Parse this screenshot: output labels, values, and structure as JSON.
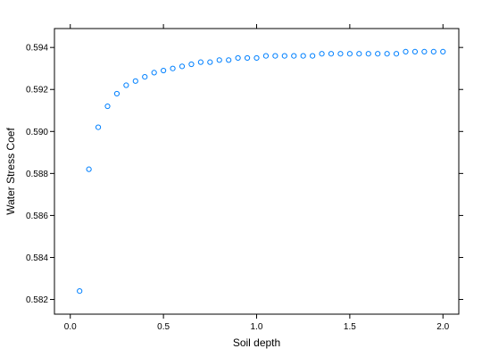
{
  "chart_data": {
    "type": "scatter",
    "xlabel": "Soil depth",
    "ylabel": "Water Stress Coef",
    "xlim": [
      -0.085,
      2.085
    ],
    "ylim": [
      0.5813,
      0.5949
    ],
    "x_ticks": [
      0.0,
      0.5,
      1.0,
      1.5,
      2.0
    ],
    "x_tick_labels": [
      "0.0",
      "0.5",
      "1.0",
      "1.5",
      "2.0"
    ],
    "y_ticks": [
      0.582,
      0.584,
      0.586,
      0.588,
      0.59,
      0.592,
      0.594
    ],
    "y_tick_labels": [
      "0.582",
      "0.584",
      "0.586",
      "0.588",
      "0.590",
      "0.592",
      "0.594"
    ],
    "grid": false,
    "marker": "open-circle",
    "point_color": "#0080ff",
    "series": [
      {
        "x": [
          0.05,
          0.1,
          0.15,
          0.2,
          0.25,
          0.3,
          0.35,
          0.4,
          0.45,
          0.5,
          0.55,
          0.6,
          0.65,
          0.7,
          0.75,
          0.8,
          0.85,
          0.9,
          0.95,
          1.0,
          1.05,
          1.1,
          1.15,
          1.2,
          1.25,
          1.3,
          1.35,
          1.4,
          1.45,
          1.5,
          1.55,
          1.6,
          1.65,
          1.7,
          1.75,
          1.8,
          1.85,
          1.9,
          1.95,
          2.0
        ],
        "y": [
          0.5824,
          0.5882,
          0.5902,
          0.5912,
          0.5918,
          0.5922,
          0.5924,
          0.5926,
          0.5928,
          0.5929,
          0.593,
          0.5931,
          0.5932,
          0.5933,
          0.5933,
          0.5934,
          0.5934,
          0.5935,
          0.5935,
          0.5935,
          0.5936,
          0.5936,
          0.5936,
          0.5936,
          0.5936,
          0.5936,
          0.5937,
          0.5937,
          0.5937,
          0.5937,
          0.5937,
          0.5937,
          0.5937,
          0.5937,
          0.5937,
          0.5938,
          0.5938,
          0.5938,
          0.5938,
          0.5938
        ]
      }
    ]
  }
}
